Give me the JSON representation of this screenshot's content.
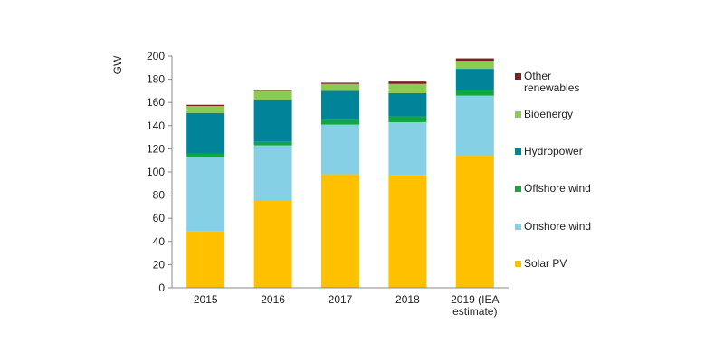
{
  "chart_data": {
    "type": "bar",
    "stacked": true,
    "ylabel": "GW",
    "xlabel": "",
    "ylim": [
      0,
      200
    ],
    "yticks": [
      0,
      20,
      40,
      60,
      80,
      100,
      120,
      140,
      160,
      180,
      200
    ],
    "grid": false,
    "legend_position": "right",
    "categories": [
      [
        "2015"
      ],
      [
        "2016"
      ],
      [
        "2017"
      ],
      [
        "2018"
      ],
      [
        "2019 (IEA",
        "estimate)"
      ]
    ],
    "series": [
      {
        "name": "Solar PV",
        "color": "#FFC000",
        "values": [
          49,
          75,
          98,
          97,
          114
        ]
      },
      {
        "name": "Onshore wind",
        "color": "#85D0E4",
        "values": [
          64,
          48,
          43,
          46,
          52
        ]
      },
      {
        "name": "Offshore wind",
        "color": "#11A73F",
        "values": [
          3,
          3,
          4,
          5,
          5
        ]
      },
      {
        "name": "Hydropower",
        "color": "#00849A",
        "values": [
          35,
          36,
          25,
          20,
          18
        ]
      },
      {
        "name": "Bioenergy",
        "color": "#8CCB51",
        "values": [
          6,
          8,
          6,
          8,
          7
        ]
      },
      {
        "name": "Other renewables",
        "color": "#7A1E1E",
        "values": [
          1,
          1,
          1,
          2,
          2
        ]
      }
    ],
    "legend_labels": [
      [
        "Other",
        "renewables"
      ],
      [
        "Bioenergy"
      ],
      [
        "Hydropower"
      ],
      [
        "Offshore wind"
      ],
      [
        "Onshore wind"
      ],
      [
        "Solar PV"
      ]
    ]
  }
}
